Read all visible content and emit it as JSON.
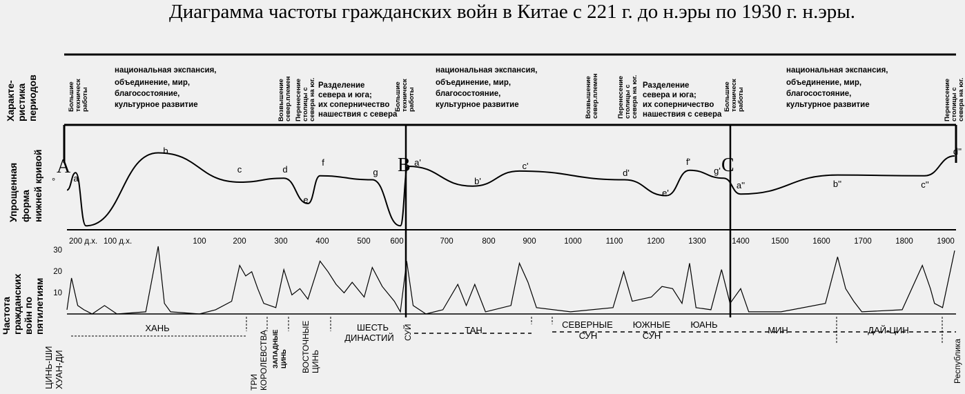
{
  "chart_data": {
    "type": "line",
    "title": "Диаграмма частоты гражданских войн в Китае с 221 г. до н.эры по 1930 г. н.эры.",
    "row_labels": {
      "characteristics": [
        "Характе-",
        "ристика",
        "периодов"
      ],
      "curve": [
        "Упрощенная",
        "форма",
        "нижней кривой"
      ],
      "frequency": [
        "Частота",
        "гражданских",
        "войн по",
        "пятилетиям"
      ]
    },
    "period_characteristics": {
      "works": [
        "Большие",
        "техническ",
        "работы"
      ],
      "expansion": [
        "национальная экспансия,",
        "объединение, мир,",
        "благосостояние,",
        "культурное развитие"
      ],
      "rise": [
        "Возвышение",
        "север.племен"
      ],
      "transfer": [
        "Перенесение",
        "столицы с",
        "севера на юг."
      ],
      "division": [
        "Разделение",
        "севера и юга;",
        "их соперничество",
        "нашествия с севера"
      ]
    },
    "cycle_markers": [
      "A",
      "B",
      "C"
    ],
    "peak_labels": [
      "a",
      "b",
      "c",
      "d",
      "e",
      "f",
      "g",
      "a'",
      "b'",
      "c'",
      "d'",
      "e'",
      "f'",
      "g'",
      "a''",
      "b''",
      "c''",
      "d''"
    ],
    "x_tick_labels": [
      "200 д.х.",
      "100 д.х.",
      "100",
      "200",
      "300",
      "400",
      "500",
      "600",
      "700",
      "800",
      "900",
      "1000",
      "1100",
      "1200",
      "1300",
      "1400",
      "1500",
      "1600",
      "1700",
      "1800",
      "1900"
    ],
    "x_range": [
      -221,
      1930
    ],
    "y_ticks": [
      10,
      20,
      30
    ],
    "y_range": [
      0,
      32
    ],
    "simplified_curve": [
      [
        -221,
        0.5
      ],
      [
        -200,
        0.72
      ],
      [
        -175,
        0.05
      ],
      [
        0,
        0.97
      ],
      [
        200,
        0.6
      ],
      [
        310,
        0.65
      ],
      [
        370,
        0.33
      ],
      [
        400,
        0.68
      ],
      [
        530,
        0.63
      ],
      [
        600,
        0.05
      ],
      [
        618,
        0.8
      ],
      [
        770,
        0.55
      ],
      [
        880,
        0.74
      ],
      [
        1127,
        0.63
      ],
      [
        1225,
        0.43
      ],
      [
        1280,
        0.75
      ],
      [
        1360,
        0.65
      ],
      [
        1400,
        0.45
      ],
      [
        1640,
        0.69
      ],
      [
        1855,
        0.68
      ],
      [
        1930,
        0.93
      ]
    ],
    "war_frequency": {
      "name": "",
      "points": [
        [
          -221,
          2
        ],
        [
          -210,
          17
        ],
        [
          -195,
          4
        ],
        [
          -180,
          2
        ],
        [
          -160,
          0
        ],
        [
          -130,
          4
        ],
        [
          -100,
          0
        ],
        [
          -30,
          1
        ],
        [
          0,
          32
        ],
        [
          15,
          5
        ],
        [
          30,
          1
        ],
        [
          100,
          0
        ],
        [
          140,
          2
        ],
        [
          180,
          6
        ],
        [
          200,
          23
        ],
        [
          215,
          18
        ],
        [
          230,
          20
        ],
        [
          245,
          12
        ],
        [
          260,
          5
        ],
        [
          290,
          3
        ],
        [
          310,
          21
        ],
        [
          330,
          9
        ],
        [
          350,
          12
        ],
        [
          370,
          7
        ],
        [
          400,
          25
        ],
        [
          420,
          20
        ],
        [
          440,
          14
        ],
        [
          460,
          10
        ],
        [
          480,
          15
        ],
        [
          510,
          8
        ],
        [
          530,
          22
        ],
        [
          555,
          13
        ],
        [
          585,
          6
        ],
        [
          600,
          1
        ],
        [
          615,
          25
        ],
        [
          630,
          4
        ],
        [
          660,
          0
        ],
        [
          700,
          2
        ],
        [
          735,
          14
        ],
        [
          755,
          4
        ],
        [
          775,
          14
        ],
        [
          800,
          1
        ],
        [
          860,
          4
        ],
        [
          880,
          24
        ],
        [
          900,
          15
        ],
        [
          920,
          3
        ],
        [
          1000,
          1
        ],
        [
          1100,
          3
        ],
        [
          1125,
          20
        ],
        [
          1145,
          6
        ],
        [
          1190,
          8
        ],
        [
          1215,
          13
        ],
        [
          1240,
          12
        ],
        [
          1262,
          5
        ],
        [
          1280,
          24
        ],
        [
          1295,
          3
        ],
        [
          1330,
          2
        ],
        [
          1355,
          21
        ],
        [
          1375,
          5
        ],
        [
          1400,
          12
        ],
        [
          1420,
          1
        ],
        [
          1500,
          1
        ],
        [
          1610,
          5
        ],
        [
          1640,
          27
        ],
        [
          1660,
          12
        ],
        [
          1680,
          6
        ],
        [
          1700,
          1
        ],
        [
          1800,
          2
        ],
        [
          1850,
          23
        ],
        [
          1870,
          12
        ],
        [
          1880,
          5
        ],
        [
          1900,
          3
        ],
        [
          1930,
          30
        ]
      ]
    }
  },
  "dynasties": {
    "qin": [
      "ЦИНЬ-ШИ",
      "ХУАН-ДИ"
    ],
    "han": "ХАНЬ",
    "three_kingdoms": [
      "ТРИ",
      "КОРОЛЕВСТВА"
    ],
    "western_jin": [
      "ЗАПАДНЫЕ",
      "ЦИНЬ"
    ],
    "eastern_jin": [
      "ВОСТОЧНЫЕ",
      "ЦИНЬ"
    ],
    "six_dynasties": [
      "ШЕСТЬ",
      "ДИНАСТИЙ"
    ],
    "sui": "СУЙ",
    "tang": "ТАН",
    "northern_song": [
      "СЕВЕРНЫЕ",
      "СУН"
    ],
    "southern_song": [
      "ЮЖНЫЕ",
      "СУН"
    ],
    "yuan": "ЮАНЬ",
    "ming": "МИН",
    "qing": "ДАЙ-ЦИН",
    "republic": "Республика"
  }
}
